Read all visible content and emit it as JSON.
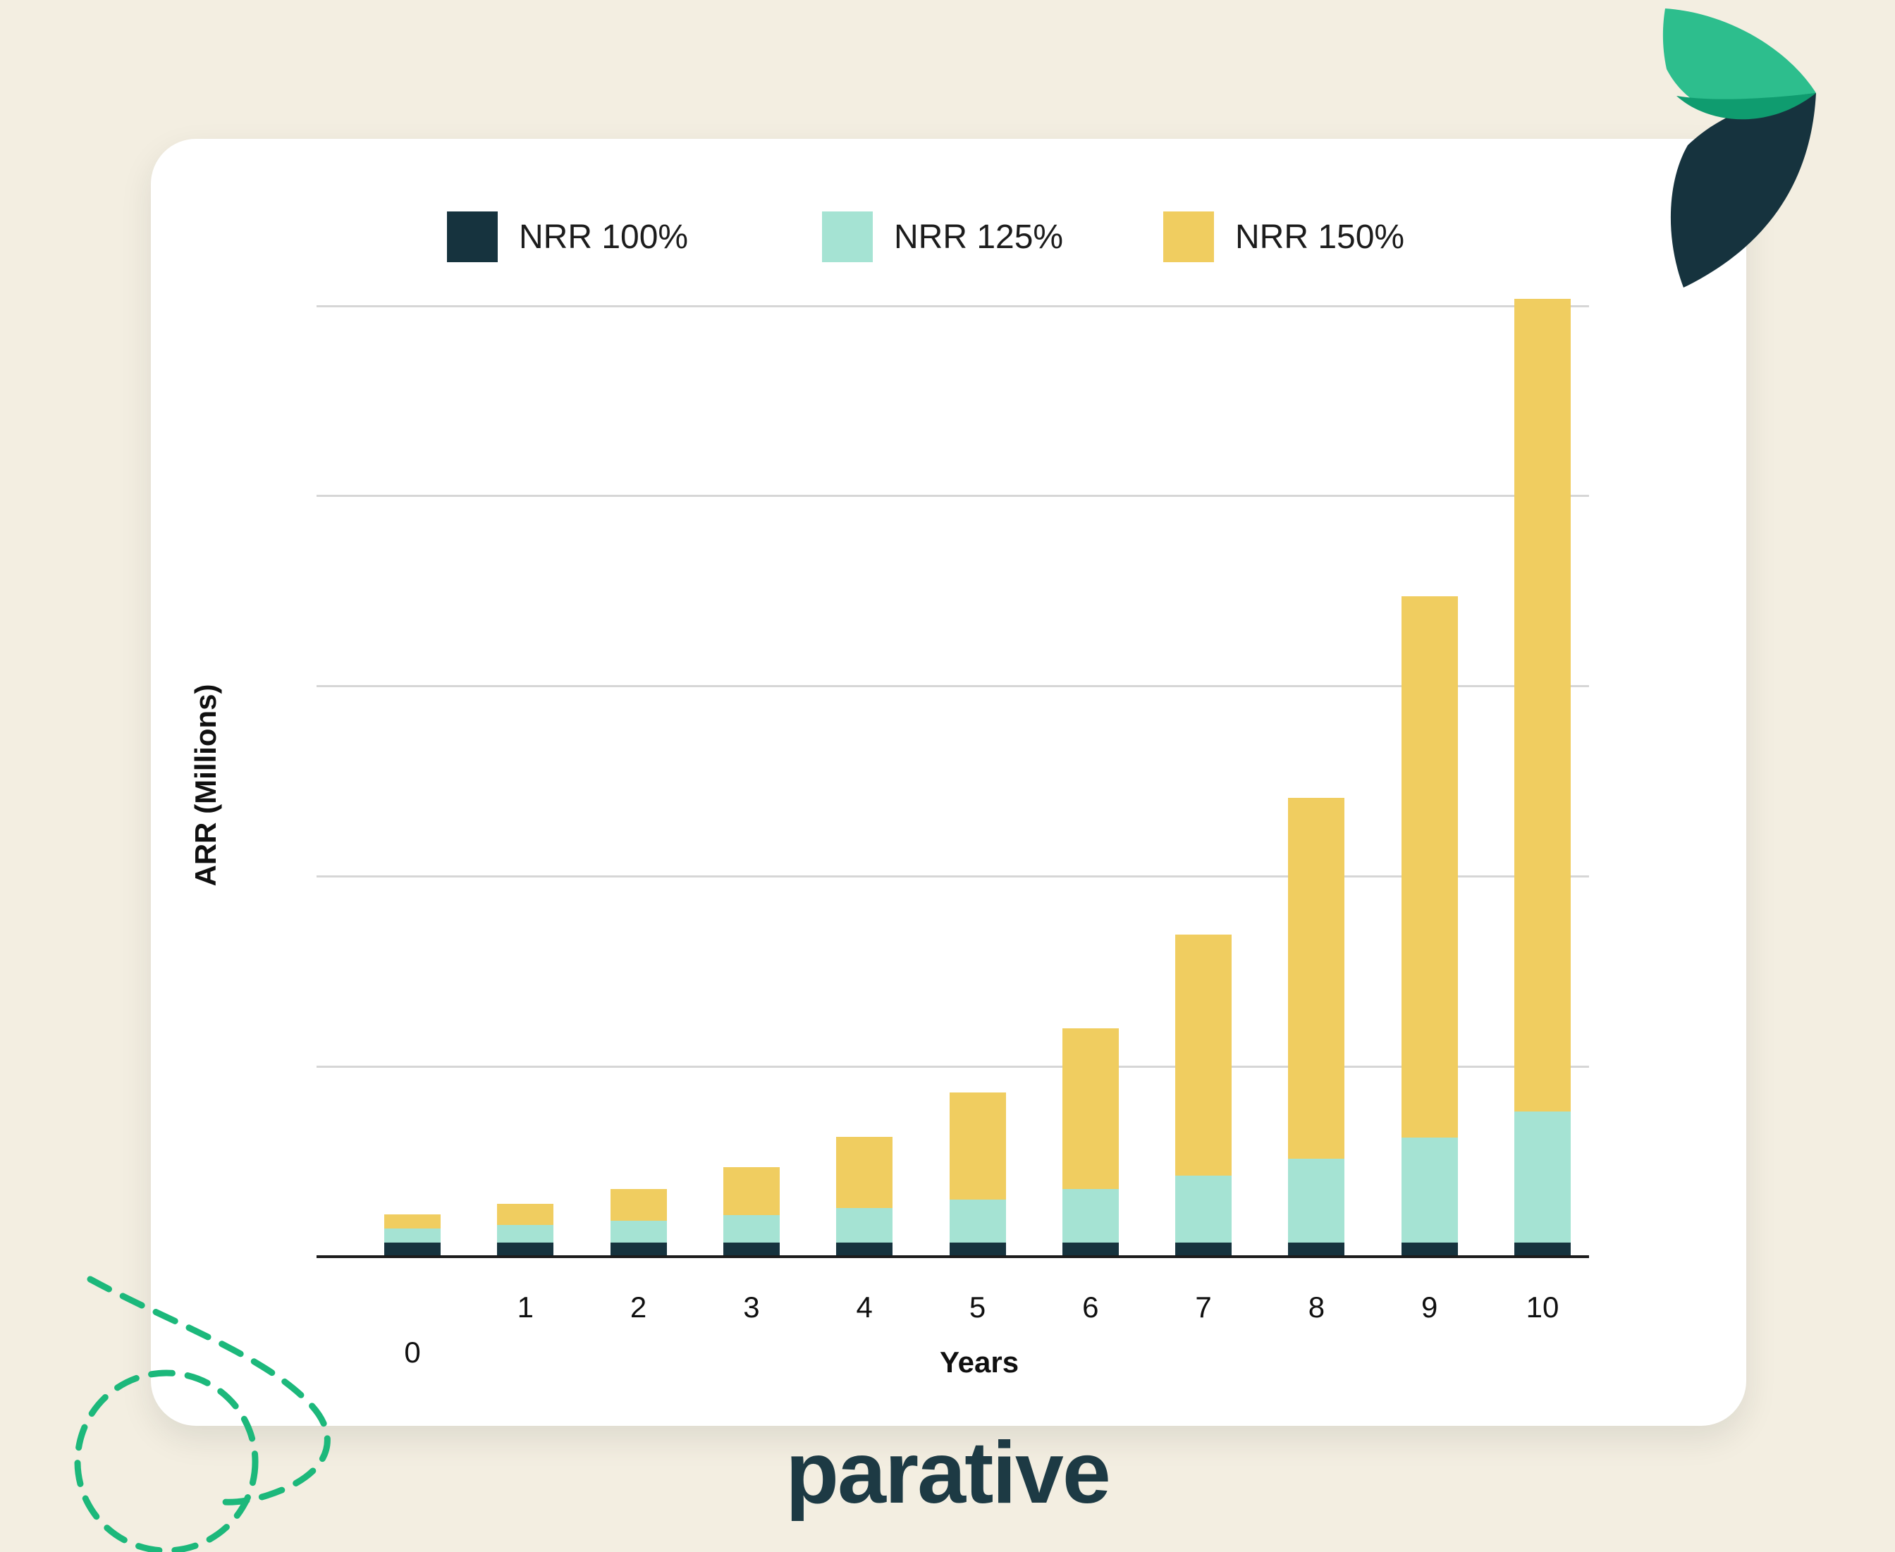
{
  "background_color": "#f3eee1",
  "card_color": "#ffffff",
  "brand": {
    "wordmark": "parative",
    "wordmark_color": "#1d3a44",
    "mark_green": "#2dbe8d",
    "mark_dark": "#16333e",
    "mark_overlap": "#0f9c6f",
    "doodle_green": "#1cb87b"
  },
  "chart_data": {
    "type": "bar",
    "stacked": true,
    "title": "",
    "xlabel": "Years",
    "ylabel": "ARR (Millions)",
    "categories": [
      "0",
      "1",
      "2",
      "3",
      "4",
      "5",
      "6",
      "7",
      "8",
      "9",
      "10"
    ],
    "series": [
      {
        "name": "NRR 100%",
        "color": "#16333e",
        "values": [
          1,
          1,
          1,
          1,
          1,
          1,
          1,
          1,
          1,
          1,
          1
        ]
      },
      {
        "name": "NRR 125%",
        "color": "#a5e3d3",
        "values": [
          1,
          1.25,
          1.56,
          1.95,
          2.44,
          3.05,
          3.81,
          4.77,
          5.96,
          7.45,
          9.31
        ]
      },
      {
        "name": "NRR 150%",
        "color": "#f0cd60",
        "values": [
          1,
          1.5,
          2.25,
          3.38,
          5.06,
          7.59,
          11.39,
          17.09,
          25.63,
          38.44,
          57.67
        ]
      }
    ],
    "ylim": [
      0,
      67.5
    ],
    "y_gridlines": 5,
    "y_tick_labels_visible": false,
    "grid": true,
    "legend_position": "top"
  }
}
